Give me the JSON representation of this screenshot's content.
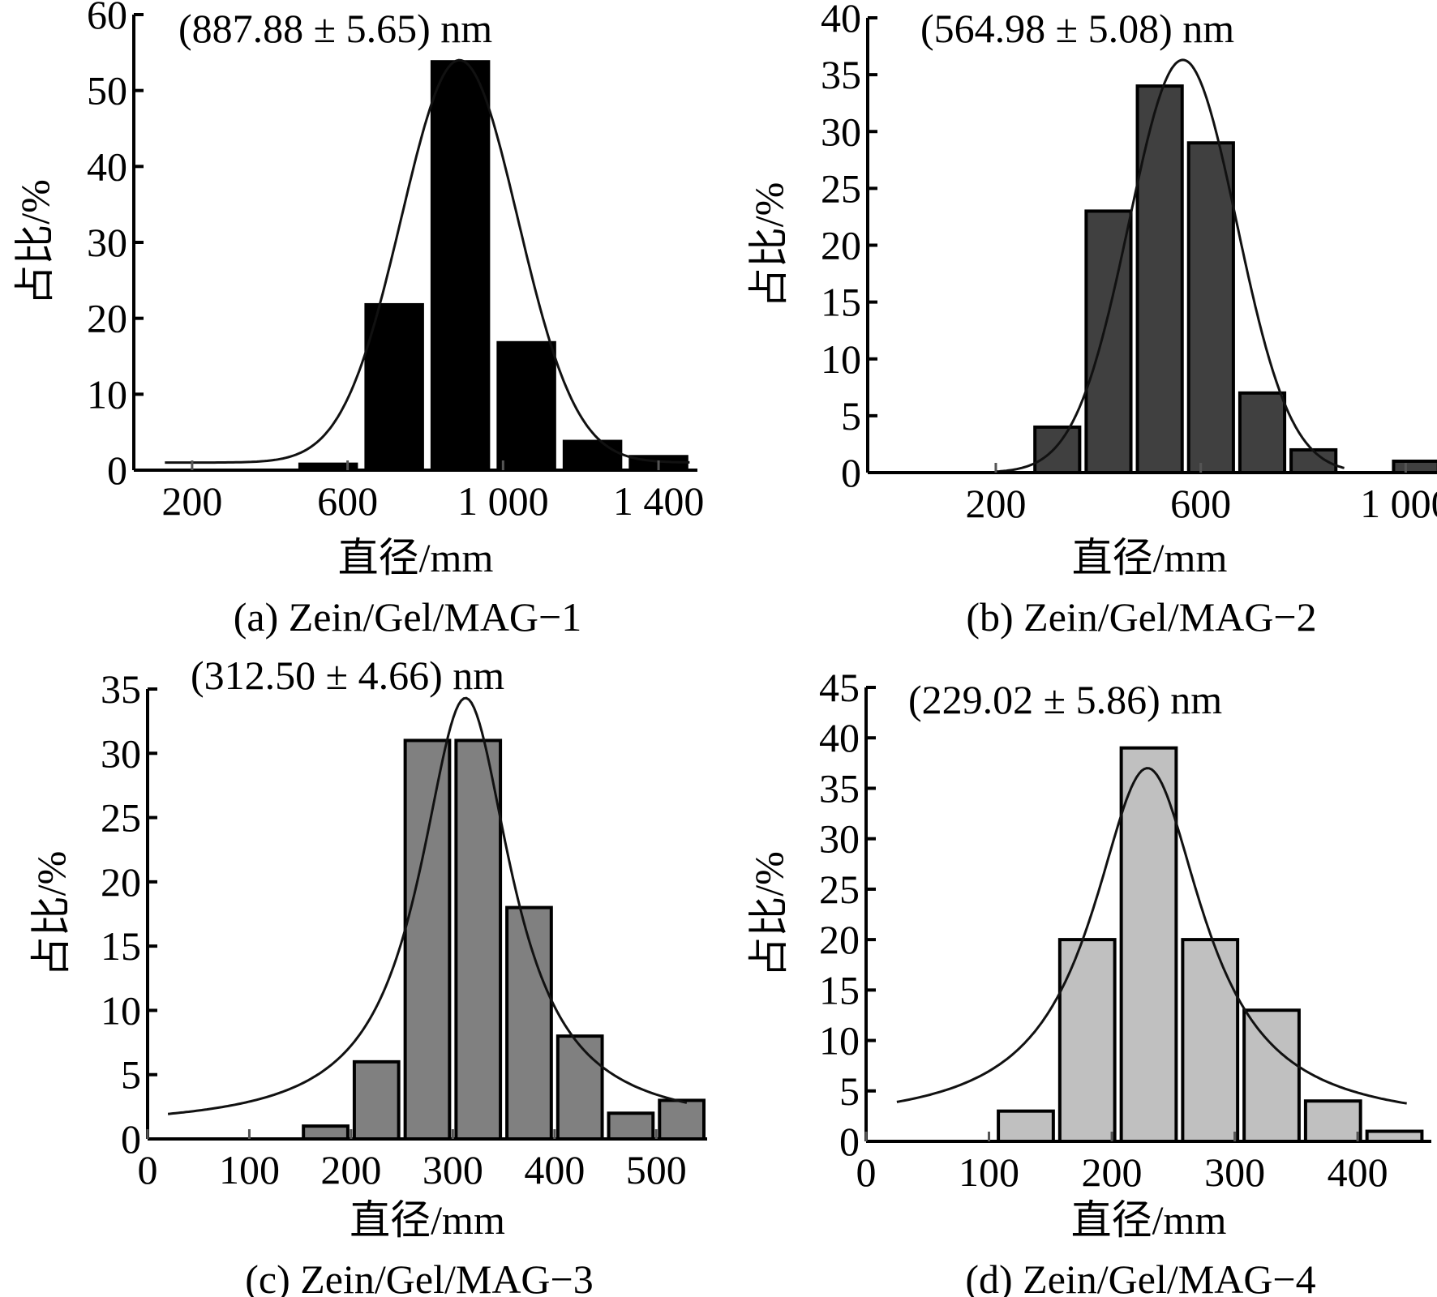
{
  "figure": {
    "panels": [
      "a",
      "b",
      "c",
      "d"
    ]
  },
  "chart_data": [
    {
      "type": "bar",
      "id": "a",
      "caption": "(a) Zein/Gel/MAG−1",
      "annotation": "(887.88 ± 5.65) nm",
      "xlabel": "直径/mm",
      "ylabel": "占比/%",
      "xlim": [
        50,
        1500
      ],
      "ylim": [
        0,
        60
      ],
      "xticks": [
        200,
        600,
        1000,
        1400
      ],
      "xtick_labels": [
        "200",
        "600",
        "1 000",
        "1 400"
      ],
      "yticks": [
        0,
        10,
        20,
        30,
        40,
        50,
        60
      ],
      "bar_color": "#000000",
      "bin_width": 170,
      "x": [
        550,
        720,
        890,
        1060,
        1230,
        1400
      ],
      "values": [
        1,
        22,
        54,
        17,
        4,
        2
      ],
      "fit_curve": {
        "type": "gaussian",
        "mean": 887.88,
        "peak": 54,
        "sigma": 150,
        "baseline": 1,
        "x_start": 130,
        "x_end": 1480
      }
    },
    {
      "type": "bar",
      "id": "b",
      "caption": "(b) Zein/Gel/MAG−2",
      "annotation": "(564.98 ± 5.08) nm",
      "xlabel": "直径/mm",
      "ylabel": "占比/%",
      "xlim": [
        -50,
        1050
      ],
      "ylim": [
        0,
        40
      ],
      "xticks": [
        200,
        600,
        1000
      ],
      "xtick_labels": [
        "200",
        "600",
        "1 000"
      ],
      "yticks": [
        0,
        5,
        10,
        15,
        20,
        25,
        30,
        35,
        40
      ],
      "bar_color": "#404040",
      "bin_width": 100,
      "x": [
        320,
        420,
        520,
        620,
        720,
        820,
        1020
      ],
      "values": [
        4,
        23,
        34,
        29,
        7,
        2,
        1
      ],
      "fit_curve": {
        "type": "gaussian",
        "mean": 564.98,
        "peak": 36.3,
        "sigma": 105,
        "baseline": 0,
        "x_start": 200,
        "x_end": 880
      }
    },
    {
      "type": "bar",
      "id": "c",
      "caption": "(c) Zein/Gel/MAG−3",
      "annotation": "(312.50 ± 4.66) nm",
      "xlabel": "直径/mm",
      "ylabel": "占比/%",
      "xlim": [
        0,
        550
      ],
      "ylim": [
        0,
        35
      ],
      "xticks": [
        0,
        100,
        200,
        300,
        400,
        500
      ],
      "xtick_labels": [
        "0",
        "100",
        "200",
        "300",
        "400",
        "500"
      ],
      "yticks": [
        0,
        5,
        10,
        15,
        20,
        25,
        30,
        35
      ],
      "bar_color": "#808080",
      "bin_width": 50,
      "x": [
        175,
        225,
        275,
        325,
        375,
        425,
        475,
        525
      ],
      "values": [
        1,
        6,
        31,
        31,
        18,
        8,
        2,
        3
      ],
      "fit_curve": {
        "type": "lorentzian",
        "mean": 312.5,
        "peak": 34.3,
        "width": 55,
        "baseline": 0.8,
        "x_start": 20,
        "x_end": 530
      }
    },
    {
      "type": "bar",
      "id": "d",
      "caption": "(d) Zein/Gel/MAG−4",
      "annotation": "(229.02 ± 5.86) nm",
      "xlabel": "直径/mm",
      "ylabel": "占比/%",
      "xlim": [
        0,
        460
      ],
      "ylim": [
        0,
        45
      ],
      "xticks": [
        0,
        100,
        200,
        300,
        400
      ],
      "xtick_labels": [
        "0",
        "100",
        "200",
        "300",
        "400"
      ],
      "yticks": [
        0,
        5,
        10,
        15,
        20,
        25,
        30,
        35,
        40,
        45
      ],
      "bar_color": "#c0c0c0",
      "bin_width": 50,
      "x": [
        130,
        180,
        230,
        280,
        330,
        380,
        430
      ],
      "values": [
        3,
        20,
        39,
        20,
        13,
        4,
        1
      ],
      "fit_curve": {
        "type": "lorentzian",
        "mean": 229.02,
        "peak": 37,
        "width": 55,
        "baseline": 1.5,
        "x_start": 25,
        "x_end": 440
      }
    }
  ]
}
